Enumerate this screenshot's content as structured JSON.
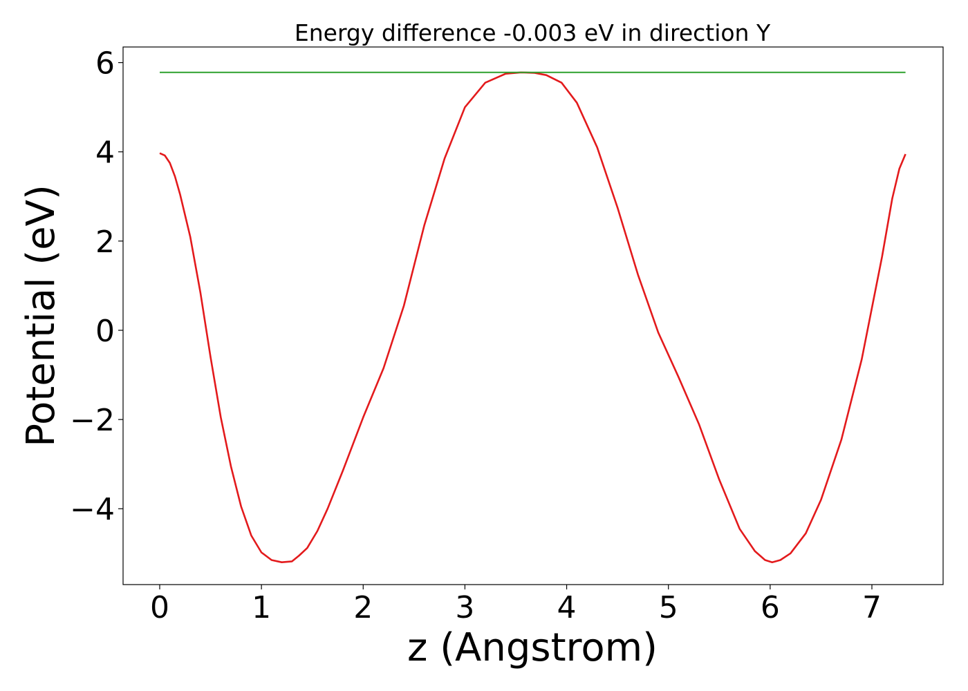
{
  "chart_data": {
    "type": "line",
    "title": "Energy difference -0.003 eV in direction Y",
    "xlabel": "z (Angstrom)",
    "ylabel": "Potential (eV)",
    "xlim": [
      -0.36,
      7.7
    ],
    "ylim": [
      -5.7,
      6.35
    ],
    "xticks": [
      0,
      1,
      2,
      3,
      4,
      5,
      6,
      7
    ],
    "xtick_labels": [
      "0",
      "1",
      "2",
      "3",
      "4",
      "5",
      "6",
      "7"
    ],
    "yticks": [
      6,
      4,
      2,
      0,
      -2,
      -4
    ],
    "ytick_labels": [
      "6",
      "4",
      "2",
      "0",
      "−2",
      "−4"
    ],
    "grid": false,
    "series": [
      {
        "color": "#e31a1c",
        "x": [
          0.0,
          0.05,
          0.1,
          0.15,
          0.2,
          0.3,
          0.4,
          0.5,
          0.6,
          0.7,
          0.8,
          0.9,
          1.0,
          1.1,
          1.2,
          1.3,
          1.37,
          1.45,
          1.55,
          1.65,
          1.8,
          2.0,
          2.2,
          2.4,
          2.6,
          2.8,
          3.0,
          3.2,
          3.4,
          3.55,
          3.68,
          3.8,
          3.95,
          4.1,
          4.3,
          4.5,
          4.7,
          4.9,
          5.1,
          5.3,
          5.5,
          5.7,
          5.85,
          5.95,
          6.02,
          6.1,
          6.2,
          6.35,
          6.5,
          6.7,
          6.9,
          7.1,
          7.2,
          7.27,
          7.33
        ],
        "values": [
          3.97,
          3.92,
          3.75,
          3.45,
          3.05,
          2.1,
          0.85,
          -0.6,
          -1.95,
          -3.05,
          -3.95,
          -4.6,
          -4.98,
          -5.15,
          -5.2,
          -5.18,
          -5.05,
          -4.88,
          -4.5,
          -4.0,
          -3.15,
          -1.95,
          -0.85,
          0.55,
          2.35,
          3.85,
          5.0,
          5.55,
          5.75,
          5.78,
          5.77,
          5.72,
          5.55,
          5.1,
          4.1,
          2.75,
          1.25,
          -0.05,
          -1.05,
          -2.1,
          -3.35,
          -4.45,
          -4.95,
          -5.15,
          -5.2,
          -5.15,
          -5.0,
          -4.55,
          -3.8,
          -2.45,
          -0.65,
          1.65,
          2.95,
          3.62,
          3.95
        ]
      },
      {
        "color": "#2ca02c",
        "x": [
          0.0,
          7.33
        ],
        "values": [
          5.78,
          5.78
        ]
      }
    ]
  }
}
